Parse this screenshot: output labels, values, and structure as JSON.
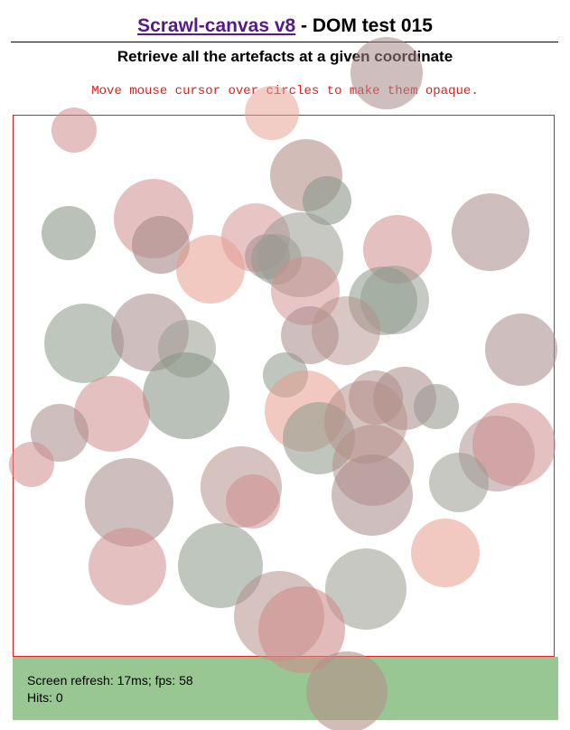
{
  "header": {
    "title_link": "Scrawl-canvas v8",
    "title_rest": " - DOM test 015",
    "subtitle": "Retrieve all the artefacts at a given coordinate",
    "instruction": "Move mouse cursor over circles to make them opaque."
  },
  "report": {
    "refresh_label": "Screen refresh: 17ms; fps: 58",
    "hits_label": "Hits: 0"
  },
  "colors": {
    "canvas_border": "#e02020",
    "report_bg": "#99c794",
    "link": "#551a8b",
    "instruction": "#e02020"
  },
  "circles": {
    "count": 56,
    "opacity": "semi-transparent",
    "palette": [
      "#cf8c8c",
      "#b49088",
      "#8b9789",
      "#a78888",
      "#e59c8e",
      "#9a9a92"
    ]
  }
}
